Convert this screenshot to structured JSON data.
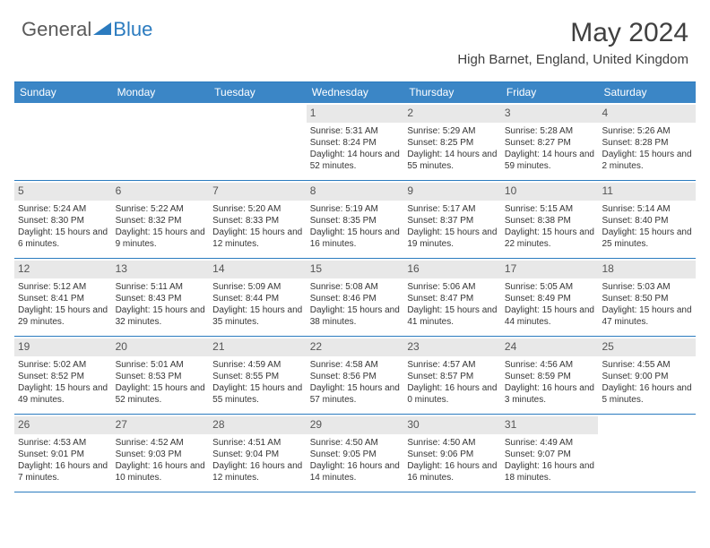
{
  "brand": {
    "part1": "General",
    "part2": "Blue"
  },
  "title": "May 2024",
  "location": "High Barnet, England, United Kingdom",
  "colors": {
    "header_bg": "#3b86c6",
    "border": "#2b7bbf",
    "daynum_bg": "#e8e8e8",
    "text": "#353535"
  },
  "day_names": [
    "Sunday",
    "Monday",
    "Tuesday",
    "Wednesday",
    "Thursday",
    "Friday",
    "Saturday"
  ],
  "weeks": [
    [
      {
        "n": "",
        "sr": "",
        "ss": "",
        "dl": ""
      },
      {
        "n": "",
        "sr": "",
        "ss": "",
        "dl": ""
      },
      {
        "n": "",
        "sr": "",
        "ss": "",
        "dl": ""
      },
      {
        "n": "1",
        "sr": "Sunrise: 5:31 AM",
        "ss": "Sunset: 8:24 PM",
        "dl": "Daylight: 14 hours and 52 minutes."
      },
      {
        "n": "2",
        "sr": "Sunrise: 5:29 AM",
        "ss": "Sunset: 8:25 PM",
        "dl": "Daylight: 14 hours and 55 minutes."
      },
      {
        "n": "3",
        "sr": "Sunrise: 5:28 AM",
        "ss": "Sunset: 8:27 PM",
        "dl": "Daylight: 14 hours and 59 minutes."
      },
      {
        "n": "4",
        "sr": "Sunrise: 5:26 AM",
        "ss": "Sunset: 8:28 PM",
        "dl": "Daylight: 15 hours and 2 minutes."
      }
    ],
    [
      {
        "n": "5",
        "sr": "Sunrise: 5:24 AM",
        "ss": "Sunset: 8:30 PM",
        "dl": "Daylight: 15 hours and 6 minutes."
      },
      {
        "n": "6",
        "sr": "Sunrise: 5:22 AM",
        "ss": "Sunset: 8:32 PM",
        "dl": "Daylight: 15 hours and 9 minutes."
      },
      {
        "n": "7",
        "sr": "Sunrise: 5:20 AM",
        "ss": "Sunset: 8:33 PM",
        "dl": "Daylight: 15 hours and 12 minutes."
      },
      {
        "n": "8",
        "sr": "Sunrise: 5:19 AM",
        "ss": "Sunset: 8:35 PM",
        "dl": "Daylight: 15 hours and 16 minutes."
      },
      {
        "n": "9",
        "sr": "Sunrise: 5:17 AM",
        "ss": "Sunset: 8:37 PM",
        "dl": "Daylight: 15 hours and 19 minutes."
      },
      {
        "n": "10",
        "sr": "Sunrise: 5:15 AM",
        "ss": "Sunset: 8:38 PM",
        "dl": "Daylight: 15 hours and 22 minutes."
      },
      {
        "n": "11",
        "sr": "Sunrise: 5:14 AM",
        "ss": "Sunset: 8:40 PM",
        "dl": "Daylight: 15 hours and 25 minutes."
      }
    ],
    [
      {
        "n": "12",
        "sr": "Sunrise: 5:12 AM",
        "ss": "Sunset: 8:41 PM",
        "dl": "Daylight: 15 hours and 29 minutes."
      },
      {
        "n": "13",
        "sr": "Sunrise: 5:11 AM",
        "ss": "Sunset: 8:43 PM",
        "dl": "Daylight: 15 hours and 32 minutes."
      },
      {
        "n": "14",
        "sr": "Sunrise: 5:09 AM",
        "ss": "Sunset: 8:44 PM",
        "dl": "Daylight: 15 hours and 35 minutes."
      },
      {
        "n": "15",
        "sr": "Sunrise: 5:08 AM",
        "ss": "Sunset: 8:46 PM",
        "dl": "Daylight: 15 hours and 38 minutes."
      },
      {
        "n": "16",
        "sr": "Sunrise: 5:06 AM",
        "ss": "Sunset: 8:47 PM",
        "dl": "Daylight: 15 hours and 41 minutes."
      },
      {
        "n": "17",
        "sr": "Sunrise: 5:05 AM",
        "ss": "Sunset: 8:49 PM",
        "dl": "Daylight: 15 hours and 44 minutes."
      },
      {
        "n": "18",
        "sr": "Sunrise: 5:03 AM",
        "ss": "Sunset: 8:50 PM",
        "dl": "Daylight: 15 hours and 47 minutes."
      }
    ],
    [
      {
        "n": "19",
        "sr": "Sunrise: 5:02 AM",
        "ss": "Sunset: 8:52 PM",
        "dl": "Daylight: 15 hours and 49 minutes."
      },
      {
        "n": "20",
        "sr": "Sunrise: 5:01 AM",
        "ss": "Sunset: 8:53 PM",
        "dl": "Daylight: 15 hours and 52 minutes."
      },
      {
        "n": "21",
        "sr": "Sunrise: 4:59 AM",
        "ss": "Sunset: 8:55 PM",
        "dl": "Daylight: 15 hours and 55 minutes."
      },
      {
        "n": "22",
        "sr": "Sunrise: 4:58 AM",
        "ss": "Sunset: 8:56 PM",
        "dl": "Daylight: 15 hours and 57 minutes."
      },
      {
        "n": "23",
        "sr": "Sunrise: 4:57 AM",
        "ss": "Sunset: 8:57 PM",
        "dl": "Daylight: 16 hours and 0 minutes."
      },
      {
        "n": "24",
        "sr": "Sunrise: 4:56 AM",
        "ss": "Sunset: 8:59 PM",
        "dl": "Daylight: 16 hours and 3 minutes."
      },
      {
        "n": "25",
        "sr": "Sunrise: 4:55 AM",
        "ss": "Sunset: 9:00 PM",
        "dl": "Daylight: 16 hours and 5 minutes."
      }
    ],
    [
      {
        "n": "26",
        "sr": "Sunrise: 4:53 AM",
        "ss": "Sunset: 9:01 PM",
        "dl": "Daylight: 16 hours and 7 minutes."
      },
      {
        "n": "27",
        "sr": "Sunrise: 4:52 AM",
        "ss": "Sunset: 9:03 PM",
        "dl": "Daylight: 16 hours and 10 minutes."
      },
      {
        "n": "28",
        "sr": "Sunrise: 4:51 AM",
        "ss": "Sunset: 9:04 PM",
        "dl": "Daylight: 16 hours and 12 minutes."
      },
      {
        "n": "29",
        "sr": "Sunrise: 4:50 AM",
        "ss": "Sunset: 9:05 PM",
        "dl": "Daylight: 16 hours and 14 minutes."
      },
      {
        "n": "30",
        "sr": "Sunrise: 4:50 AM",
        "ss": "Sunset: 9:06 PM",
        "dl": "Daylight: 16 hours and 16 minutes."
      },
      {
        "n": "31",
        "sr": "Sunrise: 4:49 AM",
        "ss": "Sunset: 9:07 PM",
        "dl": "Daylight: 16 hours and 18 minutes."
      },
      {
        "n": "",
        "sr": "",
        "ss": "",
        "dl": ""
      }
    ]
  ]
}
